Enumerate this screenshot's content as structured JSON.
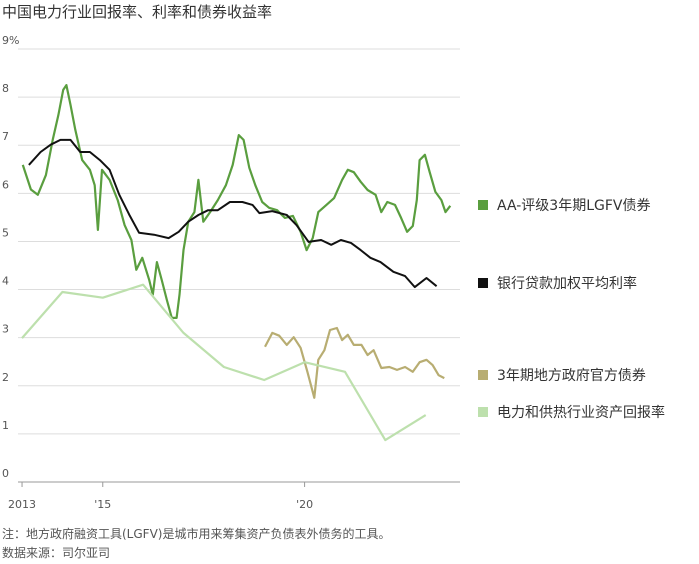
{
  "chart_data": {
    "type": "line",
    "title": "中国电力行业回报率、利率和债券收益率",
    "note": "注：地方政府融资工具(LGFV)是城市用来筹集资产负债表外债务的工具。",
    "source": "数据来源：司尔亚司",
    "xlim": [
      2012.9,
      2023.85
    ],
    "xticks": [
      2013,
      {
        "value": 2015,
        "label": "'15"
      },
      {
        "value": 2020,
        "label": "'20"
      }
    ],
    "ylim": [
      0,
      9
    ],
    "yticks": [
      0,
      1,
      2,
      3,
      4,
      5,
      6,
      7,
      8,
      {
        "value": 9,
        "label": "9%"
      }
    ],
    "grid": true,
    "legend": "right",
    "series": [
      {
        "name": "AA-评级3年期LGFV债券",
        "color": "#5a9e3f",
        "x": [
          2013.02,
          2013.22,
          2013.39,
          2013.59,
          2013.76,
          2013.9,
          2014.02,
          2014.1,
          2014.2,
          2014.32,
          2014.49,
          2014.68,
          2014.8,
          2014.88,
          2014.98,
          2015.17,
          2015.37,
          2015.54,
          2015.71,
          2015.83,
          2015.98,
          2016.15,
          2016.24,
          2016.34,
          2016.46,
          2016.59,
          2016.71,
          2016.83,
          2016.9,
          2017.0,
          2017.12,
          2017.27,
          2017.37,
          2017.49,
          2017.66,
          2017.85,
          2018.05,
          2018.22,
          2018.37,
          2018.49,
          2018.63,
          2018.78,
          2018.95,
          2019.12,
          2019.32,
          2019.51,
          2019.71,
          2019.9,
          2020.05,
          2020.2,
          2020.34,
          2020.54,
          2020.73,
          2020.93,
          2021.07,
          2021.22,
          2021.39,
          2021.56,
          2021.76,
          2021.9,
          2022.05,
          2022.24,
          2022.39,
          2022.54,
          2022.68,
          2022.78,
          2022.85,
          2022.98,
          2023.1,
          2023.24,
          2023.39,
          2023.49,
          2023.61
        ],
        "values": [
          6.59,
          6.08,
          5.97,
          6.38,
          7.11,
          7.63,
          8.15,
          8.25,
          7.84,
          7.32,
          6.69,
          6.49,
          6.17,
          5.24,
          6.49,
          6.28,
          5.86,
          5.34,
          5.03,
          4.41,
          4.66,
          4.2,
          3.89,
          4.57,
          4.2,
          3.78,
          3.41,
          3.41,
          3.89,
          4.82,
          5.41,
          5.61,
          6.28,
          5.41,
          5.61,
          5.86,
          6.17,
          6.59,
          7.21,
          7.11,
          6.53,
          6.17,
          5.82,
          5.7,
          5.65,
          5.49,
          5.53,
          5.2,
          4.82,
          5.07,
          5.61,
          5.76,
          5.9,
          6.28,
          6.49,
          6.44,
          6.24,
          6.07,
          5.97,
          5.61,
          5.82,
          5.76,
          5.49,
          5.2,
          5.32,
          5.86,
          6.69,
          6.8,
          6.44,
          6.03,
          5.86,
          5.61,
          5.74
        ]
      },
      {
        "name": "银行贷款加权平均利率",
        "color": "#111111",
        "x": [
          2013.17,
          2013.46,
          2013.71,
          2013.95,
          2014.2,
          2014.44,
          2014.68,
          2014.93,
          2015.17,
          2015.41,
          2015.66,
          2015.9,
          2016.27,
          2016.63,
          2016.88,
          2017.12,
          2017.37,
          2017.61,
          2017.85,
          2018.15,
          2018.46,
          2018.71,
          2018.88,
          2019.2,
          2019.56,
          2019.8,
          2020.1,
          2020.41,
          2020.66,
          2020.9,
          2021.15,
          2021.39,
          2021.63,
          2021.88,
          2022.2,
          2022.49,
          2022.73,
          2023.02,
          2023.27
        ],
        "values": [
          6.59,
          6.86,
          7.01,
          7.11,
          7.11,
          6.86,
          6.86,
          6.69,
          6.49,
          5.97,
          5.55,
          5.18,
          5.14,
          5.07,
          5.2,
          5.41,
          5.55,
          5.65,
          5.65,
          5.82,
          5.82,
          5.76,
          5.59,
          5.63,
          5.55,
          5.34,
          4.99,
          5.03,
          4.93,
          5.03,
          4.97,
          4.82,
          4.66,
          4.57,
          4.37,
          4.28,
          4.05,
          4.24,
          4.07
        ]
      },
      {
        "name": "3年期地方政府官方债券",
        "color": "#b8ad72",
        "x": [
          2019.02,
          2019.2,
          2019.37,
          2019.56,
          2019.73,
          2019.9,
          2020.07,
          2020.24,
          2020.34,
          2020.49,
          2020.63,
          2020.8,
          2020.93,
          2021.07,
          2021.22,
          2021.41,
          2021.56,
          2021.71,
          2021.9,
          2022.1,
          2022.29,
          2022.49,
          2022.68,
          2022.85,
          2023.02,
          2023.17,
          2023.32,
          2023.46
        ],
        "values": [
          2.81,
          3.1,
          3.04,
          2.85,
          3.01,
          2.79,
          2.29,
          1.75,
          2.54,
          2.74,
          3.16,
          3.2,
          2.95,
          3.06,
          2.85,
          2.85,
          2.64,
          2.74,
          2.37,
          2.39,
          2.33,
          2.39,
          2.29,
          2.49,
          2.54,
          2.43,
          2.22,
          2.16
        ]
      },
      {
        "name": "电力和供热行业资产回报率",
        "color": "#bde0ad",
        "x": [
          2013,
          2014,
          2015,
          2016,
          2017,
          2018,
          2019,
          2020,
          2021,
          2022,
          2023
        ],
        "values": [
          2.99,
          3.95,
          3.83,
          4.1,
          3.1,
          2.39,
          2.12,
          2.49,
          2.29,
          0.87,
          1.39
        ]
      }
    ]
  }
}
